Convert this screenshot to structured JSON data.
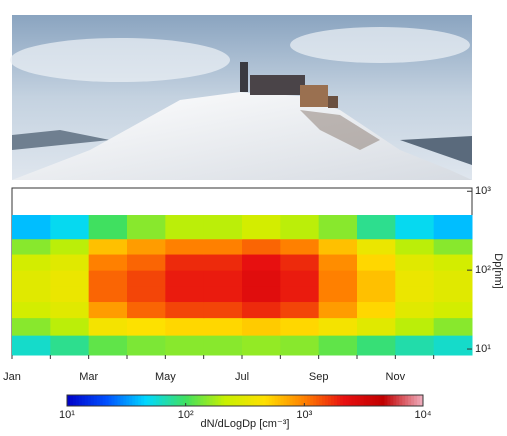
{
  "chart_data": {
    "type": "heatmap",
    "categories": [
      "Jan",
      null,
      "Mar",
      null,
      "May",
      null,
      "Jul",
      null,
      "Sep",
      null,
      "Nov",
      null
    ],
    "y_bins": [
      8.4,
      15,
      25,
      40,
      63,
      100,
      160,
      250,
      500
    ],
    "z": [
      [
        60,
        80,
        120,
        140,
        150,
        150,
        160,
        150,
        120,
        90,
        70,
        60
      ],
      [
        150,
        200,
        400,
        450,
        500,
        500,
        550,
        500,
        400,
        300,
        200,
        150
      ],
      [
        250,
        300,
        800,
        1200,
        1500,
        1500,
        1800,
        1500,
        800,
        500,
        300,
        250
      ],
      [
        300,
        350,
        1200,
        1500,
        2000,
        2000,
        2500,
        2000,
        1000,
        600,
        350,
        300
      ],
      [
        300,
        350,
        1200,
        1500,
        2000,
        2000,
        2500,
        2000,
        1000,
        600,
        350,
        300
      ],
      [
        250,
        300,
        1000,
        1200,
        1800,
        1800,
        2200,
        1800,
        900,
        500,
        300,
        250
      ],
      [
        150,
        200,
        600,
        800,
        1000,
        1000,
        1200,
        1000,
        600,
        350,
        200,
        150
      ],
      [
        40,
        50,
        100,
        150,
        200,
        200,
        250,
        200,
        150,
        80,
        50,
        40
      ]
    ],
    "ylim": [
      8.4,
      1100
    ],
    "log_y": true,
    "yticks": [
      {
        "value": 10,
        "label": "10¹"
      },
      {
        "value": 100,
        "label": "10²"
      },
      {
        "value": 1000,
        "label": "10³"
      }
    ],
    "y_label": "Dp[nm]",
    "clim": [
      10,
      10000
    ],
    "log_color": true,
    "cticks": [
      {
        "value": 10,
        "label": "10¹"
      },
      {
        "value": 100,
        "label": "10²"
      },
      {
        "value": 1000,
        "label": "10³"
      },
      {
        "value": 10000,
        "label": "10⁴"
      }
    ],
    "colormap": [
      "#0000c8",
      "#0050ff",
      "#00d8ff",
      "#40e060",
      "#c8f000",
      "#ffe000",
      "#ff8000",
      "#e81010",
      "#c00000",
      "#f0b0c0"
    ],
    "colorbar_label": "dN/dLogDp [cm⁻³]"
  }
}
